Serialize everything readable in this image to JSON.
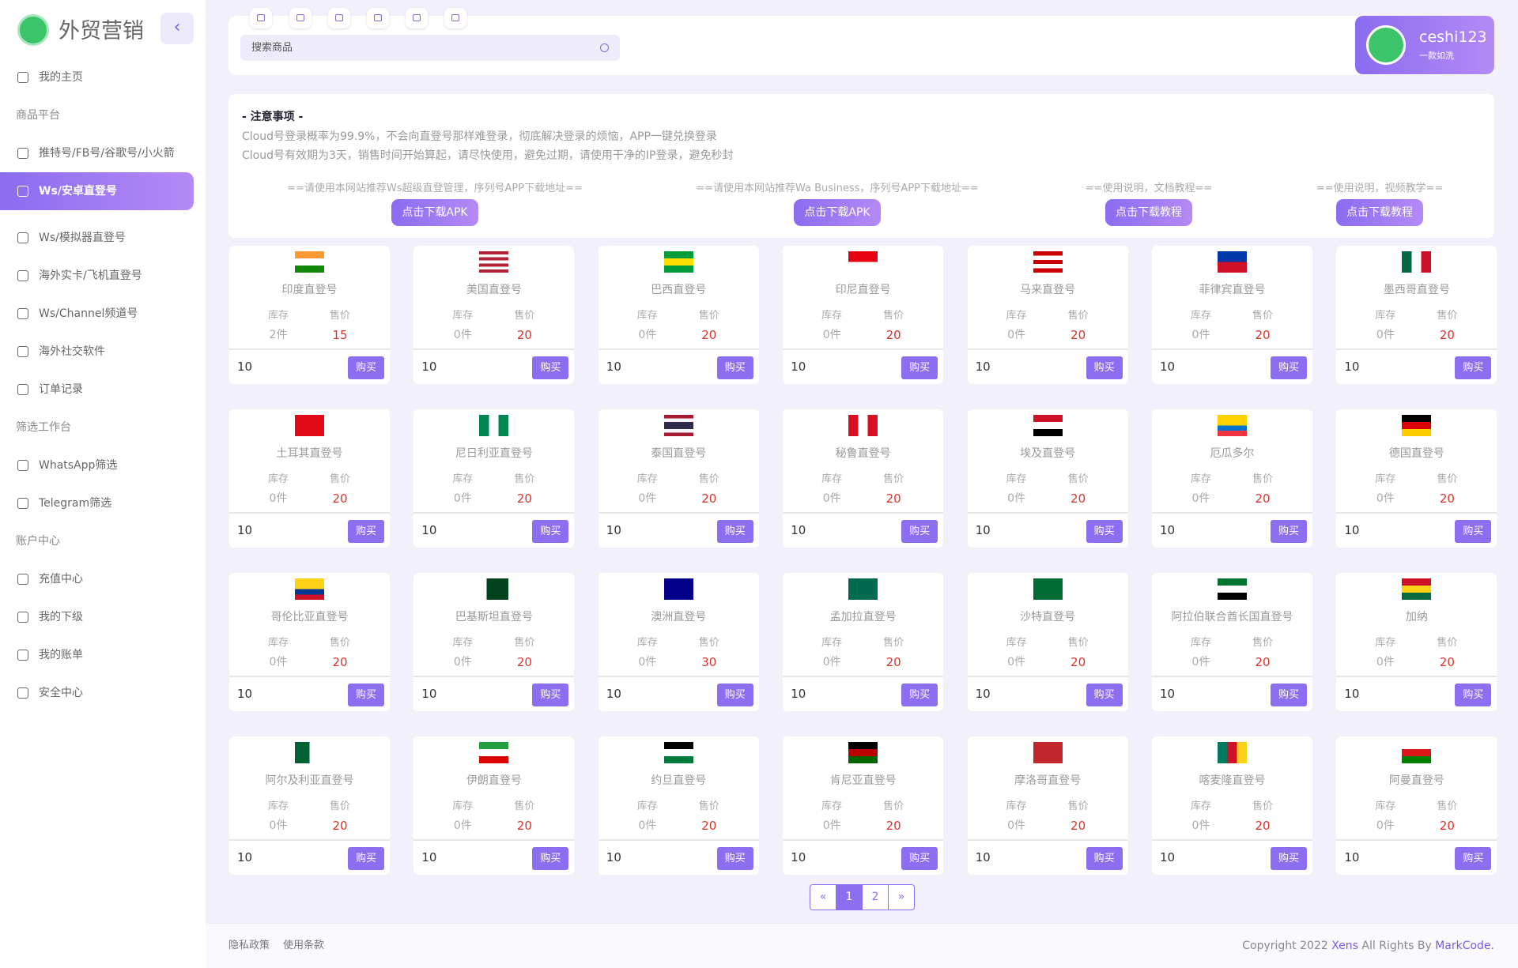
{
  "header": {
    "brand": "外贸营销",
    "search_placeholder": "搜索商品",
    "user_name": "ceshi123",
    "user_subtitle": "一款如洗"
  },
  "sidebar": {
    "groups": [
      {
        "links": [
          {
            "text": "我的主页"
          }
        ]
      },
      {
        "title": "商品平台",
        "links": [
          {
            "text": "推特号/FB号/谷歌号/小火箭"
          },
          {
            "text": "Ws/安卓直登号",
            "active": true
          },
          {
            "text": "Ws/模拟器直登号"
          },
          {
            "text": "海外实卡/飞机直登号"
          },
          {
            "text": "Ws/Channel频道号"
          },
          {
            "text": "海外社交软件"
          },
          {
            "text": "订单记录"
          }
        ]
      },
      {
        "title": "筛选工作台",
        "links": [
          {
            "text": "WhatsApp筛选"
          },
          {
            "text": "Telegram筛选"
          }
        ]
      },
      {
        "title": "账户中心",
        "links": [
          {
            "text": "充值中心"
          },
          {
            "text": "我的下级"
          },
          {
            "text": "我的账单"
          },
          {
            "text": "安全中心"
          }
        ]
      }
    ]
  },
  "notice": {
    "title": "- 注意事项 -",
    "lines": [
      "Cloud号登录概率为99.9%，不会向直登号那样难登录，彻底解决登录的烦恼，APP一键兑换登录",
      "Cloud号有效期为3天，销售时间开始算起，请尽快使用，避免过期，请使用干净的IP登录，避免秒封"
    ],
    "downloads": [
      {
        "text": "==请使用本网站推荐Ws超级直登管理，序列号APP下载地址==",
        "button": "点击下载APK"
      },
      {
        "text": "==请使用本网站推荐Wa Business，序列号APP下载地址==",
        "button": "点击下载APK"
      },
      {
        "text": "==使用说明，文档教程==",
        "button": "点击下载教程"
      },
      {
        "text": "==使用说明，视频教学==",
        "button": "点击下载教程"
      }
    ]
  },
  "products": {
    "stock_label": "库存",
    "price_label": "售价",
    "buy": "购买",
    "items": [
      {
        "name": "印度直登号",
        "stock": "2件",
        "price": 15,
        "qty": 10
      },
      {
        "name": "美国直登号",
        "stock": "0件",
        "price": 20,
        "qty": 10
      },
      {
        "name": "巴西直登号",
        "stock": "0件",
        "price": 20,
        "qty": 10
      },
      {
        "name": "印尼直登号",
        "stock": "0件",
        "price": 20,
        "qty": 10
      },
      {
        "name": "马来直登号",
        "stock": "0件",
        "price": 20,
        "qty": 10
      },
      {
        "name": "菲律宾直登号",
        "stock": "0件",
        "price": 20,
        "qty": 10
      },
      {
        "name": "墨西哥直登号",
        "stock": "0件",
        "price": 20,
        "qty": 10
      },
      {
        "name": "土耳其直登号",
        "stock": "0件",
        "price": 20,
        "qty": 10
      },
      {
        "name": "尼日利亚直登号",
        "stock": "0件",
        "price": 20,
        "qty": 10
      },
      {
        "name": "泰国直登号",
        "stock": "0件",
        "price": 20,
        "qty": 10
      },
      {
        "name": "秘鲁直登号",
        "stock": "0件",
        "price": 20,
        "qty": 10
      },
      {
        "name": "埃及直登号",
        "stock": "0件",
        "price": 20,
        "qty": 10
      },
      {
        "name": "厄瓜多尔",
        "stock": "0件",
        "price": 20,
        "qty": 10
      },
      {
        "name": "德国直登号",
        "stock": "0件",
        "price": 20,
        "qty": 10
      },
      {
        "name": "哥伦比亚直登号",
        "stock": "0件",
        "price": 20,
        "qty": 10
      },
      {
        "name": "巴基斯坦直登号",
        "stock": "0件",
        "price": 20,
        "qty": 10
      },
      {
        "name": "澳洲直登号",
        "stock": "0件",
        "price": 30,
        "qty": 10
      },
      {
        "name": "孟加拉直登号",
        "stock": "0件",
        "price": 20,
        "qty": 10
      },
      {
        "name": "沙特直登号",
        "stock": "0件",
        "price": 20,
        "qty": 10
      },
      {
        "name": "阿拉伯联合酋长国直登号",
        "stock": "0件",
        "price": 20,
        "qty": 10
      },
      {
        "name": "加纳",
        "stock": "0件",
        "price": 20,
        "qty": 10
      },
      {
        "name": "阿尔及利亚直登号",
        "stock": "0件",
        "price": 20,
        "qty": 10
      },
      {
        "name": "伊朗直登号",
        "stock": "0件",
        "price": 20,
        "qty": 10
      },
      {
        "name": "约旦直登号",
        "stock": "0件",
        "price": 20,
        "qty": 10
      },
      {
        "name": "肯尼亚直登号",
        "stock": "0件",
        "price": 20,
        "qty": 10
      },
      {
        "name": "摩洛哥直登号",
        "stock": "0件",
        "price": 20,
        "qty": 10
      },
      {
        "name": "喀麦隆直登号",
        "stock": "0件",
        "price": 20,
        "qty": 10
      },
      {
        "name": "阿曼直登号",
        "stock": "0件",
        "price": 20,
        "qty": 10
      }
    ]
  },
  "pagination": {
    "pages": [
      "«",
      "1",
      "2",
      "»"
    ],
    "active": 1
  },
  "footer": {
    "links": [
      "隐私政策",
      "使用条款"
    ],
    "copyright": [
      "Copyright 2022",
      "Xens",
      "All Rights By",
      "MarkCode."
    ]
  }
}
